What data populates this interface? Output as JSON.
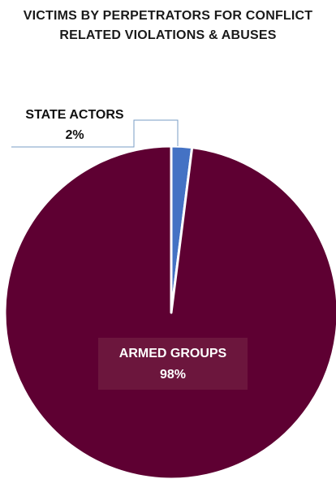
{
  "chart_data": {
    "type": "pie",
    "title": "VICTIMS BY PERPETRATORS FOR CONFLICT RELATED VIOLATIONS & ABUSES",
    "slices": [
      {
        "label": "STATE ACTORS",
        "value": 2,
        "display": "2%",
        "color": "#4472C4"
      },
      {
        "label": "ARMED GROUPS",
        "value": 98,
        "display": "98%",
        "color": "#5E0032"
      }
    ],
    "legend": "none",
    "data_labels": "on"
  }
}
